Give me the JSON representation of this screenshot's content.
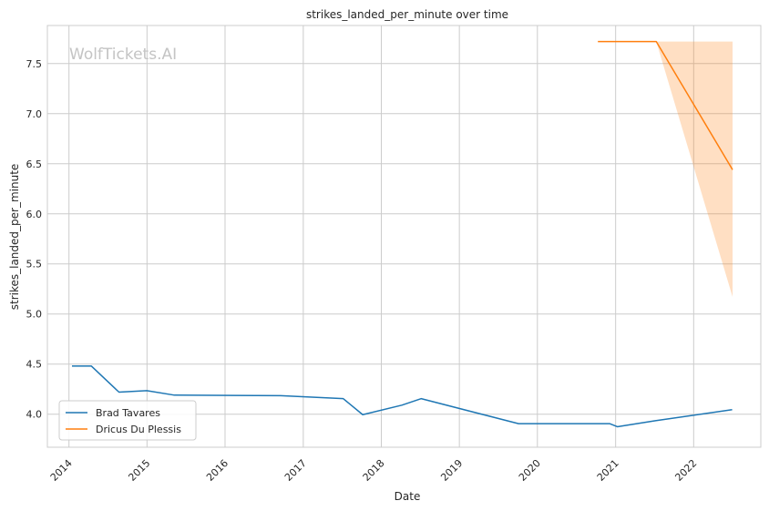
{
  "chart_data": {
    "type": "line",
    "title": "strikes_landed_per_minute over time",
    "xlabel": "Date",
    "ylabel": "strikes_landed_per_minute",
    "watermark": "WolfTickets.AI",
    "xlim": [
      "2013-09-22",
      "2022-11-11"
    ],
    "ylim": [
      3.67,
      7.88
    ],
    "x_ticks": [
      "2014",
      "2015",
      "2016",
      "2017",
      "2018",
      "2019",
      "2020",
      "2021",
      "2022"
    ],
    "y_ticks": [
      "4.0",
      "4.5",
      "5.0",
      "5.5",
      "6.0",
      "6.5",
      "7.0",
      "7.5"
    ],
    "grid": true,
    "legend_position": "lower-left",
    "series": [
      {
        "name": "Brad Tavares",
        "color": "#1f77b4",
        "x": [
          "2014-01-15",
          "2014-04-16",
          "2014-08-23",
          "2014-12-31",
          "2015-05-09",
          "2016-09-17",
          "2017-07-07",
          "2017-10-06",
          "2018-04-07",
          "2018-07-06",
          "2019-10-05",
          "2020-12-05",
          "2021-01-09",
          "2021-07-06",
          "2022-06-30"
        ],
        "y": [
          4.48,
          4.48,
          4.22,
          4.235,
          4.19,
          4.185,
          4.155,
          3.995,
          4.09,
          4.155,
          3.905,
          3.905,
          3.875,
          3.935,
          4.045
        ]
      },
      {
        "name": "Dricus Du Plessis",
        "color": "#ff7f0e",
        "x": [
          "2020-10-10",
          "2021-07-10",
          "2022-07-02"
        ],
        "y": [
          7.72,
          7.72,
          6.44
        ],
        "band_upper": [
          7.72,
          7.72,
          7.72
        ],
        "band_lower": [
          7.72,
          7.72,
          5.17
        ]
      }
    ]
  }
}
